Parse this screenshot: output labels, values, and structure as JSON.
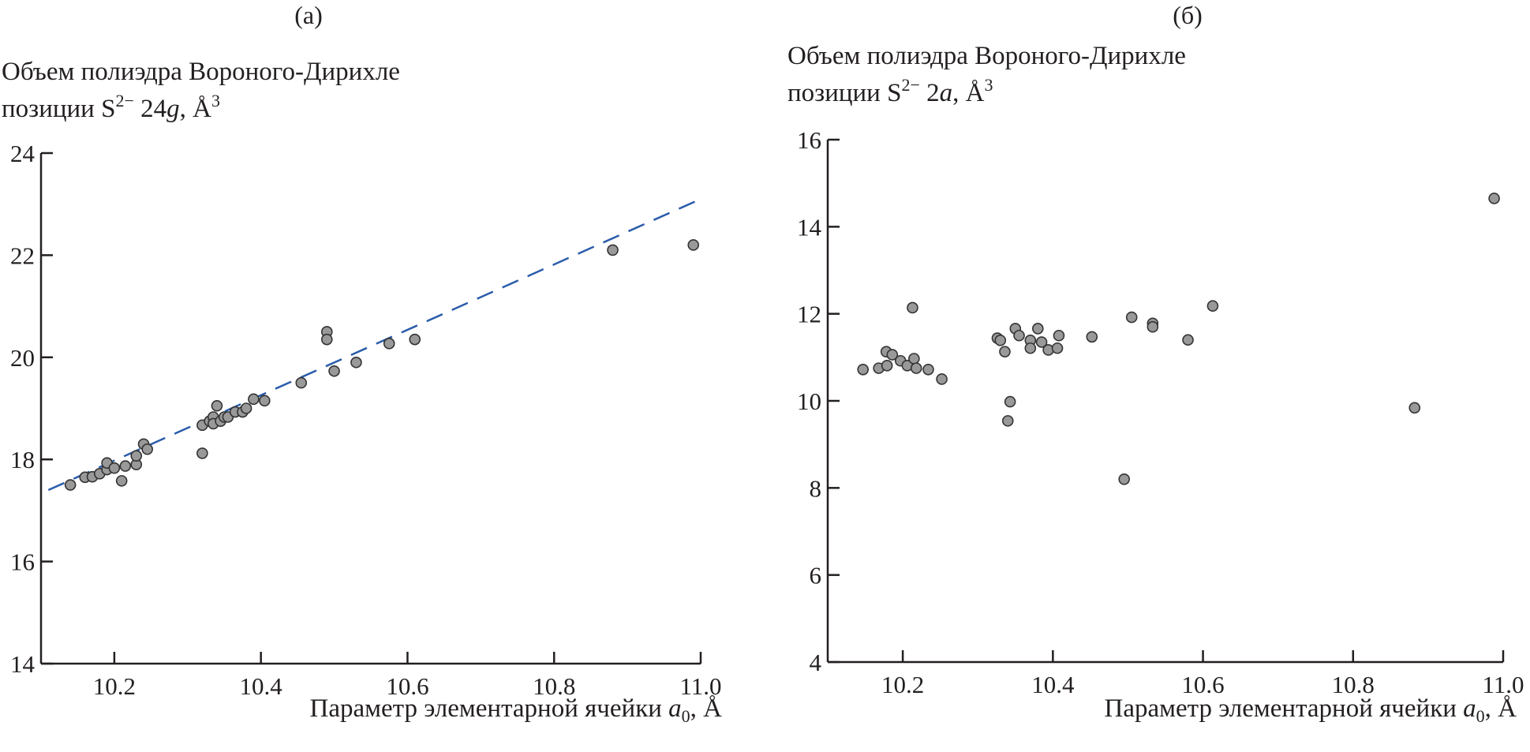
{
  "chart_data": [
    {
      "type": "scatter",
      "panel_label": "(a)",
      "ylabel_lines": [
        "Объем полиэдра Вороного-Дирихле",
        "позиции S",
        "2−",
        " 24",
        "g",
        ", Å",
        "3"
      ],
      "xlabel_parts": [
        "Параметр элементарной ячейки ",
        "a",
        "0",
        ", Å"
      ],
      "xlim": [
        10.1,
        11.0
      ],
      "ylim": [
        14,
        24
      ],
      "xticks": [
        10.2,
        10.4,
        10.6,
        10.8,
        11.0
      ],
      "xtick_labels": [
        "10.2",
        "10.4",
        "10.6",
        "10.8",
        "11.0"
      ],
      "yticks": [
        14,
        16,
        18,
        20,
        22,
        24
      ],
      "ytick_labels": [
        "14",
        "16",
        "18",
        "20",
        "22",
        "24"
      ],
      "grid": false,
      "marker_color": "#999999",
      "trend_line": {
        "style": "dashed",
        "color": "#2a5caa",
        "points": [
          [
            10.11,
            17.4
          ],
          [
            11.0,
            23.1
          ]
        ]
      },
      "points": [
        [
          10.14,
          17.5
        ],
        [
          10.16,
          17.65
        ],
        [
          10.17,
          17.66
        ],
        [
          10.18,
          17.72
        ],
        [
          10.19,
          17.8
        ],
        [
          10.19,
          17.93
        ],
        [
          10.2,
          17.83
        ],
        [
          10.21,
          17.58
        ],
        [
          10.215,
          17.87
        ],
        [
          10.23,
          17.9
        ],
        [
          10.23,
          18.07
        ],
        [
          10.24,
          18.3
        ],
        [
          10.245,
          18.2
        ],
        [
          10.32,
          18.12
        ],
        [
          10.32,
          18.67
        ],
        [
          10.33,
          18.75
        ],
        [
          10.335,
          18.83
        ],
        [
          10.335,
          18.7
        ],
        [
          10.34,
          19.05
        ],
        [
          10.345,
          18.75
        ],
        [
          10.35,
          18.83
        ],
        [
          10.355,
          18.83
        ],
        [
          10.365,
          18.93
        ],
        [
          10.375,
          18.93
        ],
        [
          10.38,
          19.0
        ],
        [
          10.39,
          19.18
        ],
        [
          10.405,
          19.15
        ],
        [
          10.455,
          19.5
        ],
        [
          10.49,
          20.5
        ],
        [
          10.49,
          20.35
        ],
        [
          10.5,
          19.73
        ],
        [
          10.53,
          19.9
        ],
        [
          10.575,
          20.27
        ],
        [
          10.61,
          20.35
        ],
        [
          10.88,
          22.1
        ],
        [
          10.99,
          22.2
        ]
      ]
    },
    {
      "type": "scatter",
      "panel_label": "(б)",
      "ylabel_lines": [
        "Объем полиэдра Вороного-Дирихле",
        "позиции S",
        "2−",
        " 2",
        "a",
        ", Å",
        "3"
      ],
      "xlabel_parts": [
        "Параметр элементарной ячейки ",
        "a",
        "0",
        ", Å"
      ],
      "xlim": [
        10.1,
        11.0
      ],
      "ylim": [
        4,
        16
      ],
      "xticks": [
        10.2,
        10.4,
        10.6,
        10.8,
        11.0
      ],
      "xtick_labels": [
        "10.2",
        "10.4",
        "10.6",
        "10.8",
        "11.0"
      ],
      "yticks": [
        4,
        6,
        8,
        10,
        12,
        14,
        16
      ],
      "ytick_labels": [
        "4",
        "6",
        "8",
        "10",
        "12",
        "14",
        "16"
      ],
      "grid": false,
      "marker_color": "#999999",
      "points": [
        [
          10.147,
          10.72
        ],
        [
          10.168,
          10.75
        ],
        [
          10.178,
          11.13
        ],
        [
          10.179,
          10.81
        ],
        [
          10.186,
          11.06
        ],
        [
          10.197,
          10.92
        ],
        [
          10.206,
          10.81
        ],
        [
          10.213,
          12.14
        ],
        [
          10.215,
          10.97
        ],
        [
          10.218,
          10.75
        ],
        [
          10.234,
          10.72
        ],
        [
          10.252,
          10.5
        ],
        [
          10.326,
          11.44
        ],
        [
          10.33,
          11.39
        ],
        [
          10.336,
          11.13
        ],
        [
          10.343,
          9.98
        ],
        [
          10.34,
          9.54
        ],
        [
          10.35,
          11.66
        ],
        [
          10.355,
          11.5
        ],
        [
          10.37,
          11.39
        ],
        [
          10.37,
          11.21
        ],
        [
          10.38,
          11.66
        ],
        [
          10.385,
          11.35
        ],
        [
          10.394,
          11.17
        ],
        [
          10.406,
          11.21
        ],
        [
          10.408,
          11.5
        ],
        [
          10.452,
          11.47
        ],
        [
          10.495,
          8.2
        ],
        [
          10.505,
          11.92
        ],
        [
          10.533,
          11.78
        ],
        [
          10.533,
          11.7
        ],
        [
          10.58,
          11.4
        ],
        [
          10.613,
          12.18
        ],
        [
          10.882,
          9.84
        ],
        [
          10.988,
          14.65
        ]
      ]
    }
  ]
}
